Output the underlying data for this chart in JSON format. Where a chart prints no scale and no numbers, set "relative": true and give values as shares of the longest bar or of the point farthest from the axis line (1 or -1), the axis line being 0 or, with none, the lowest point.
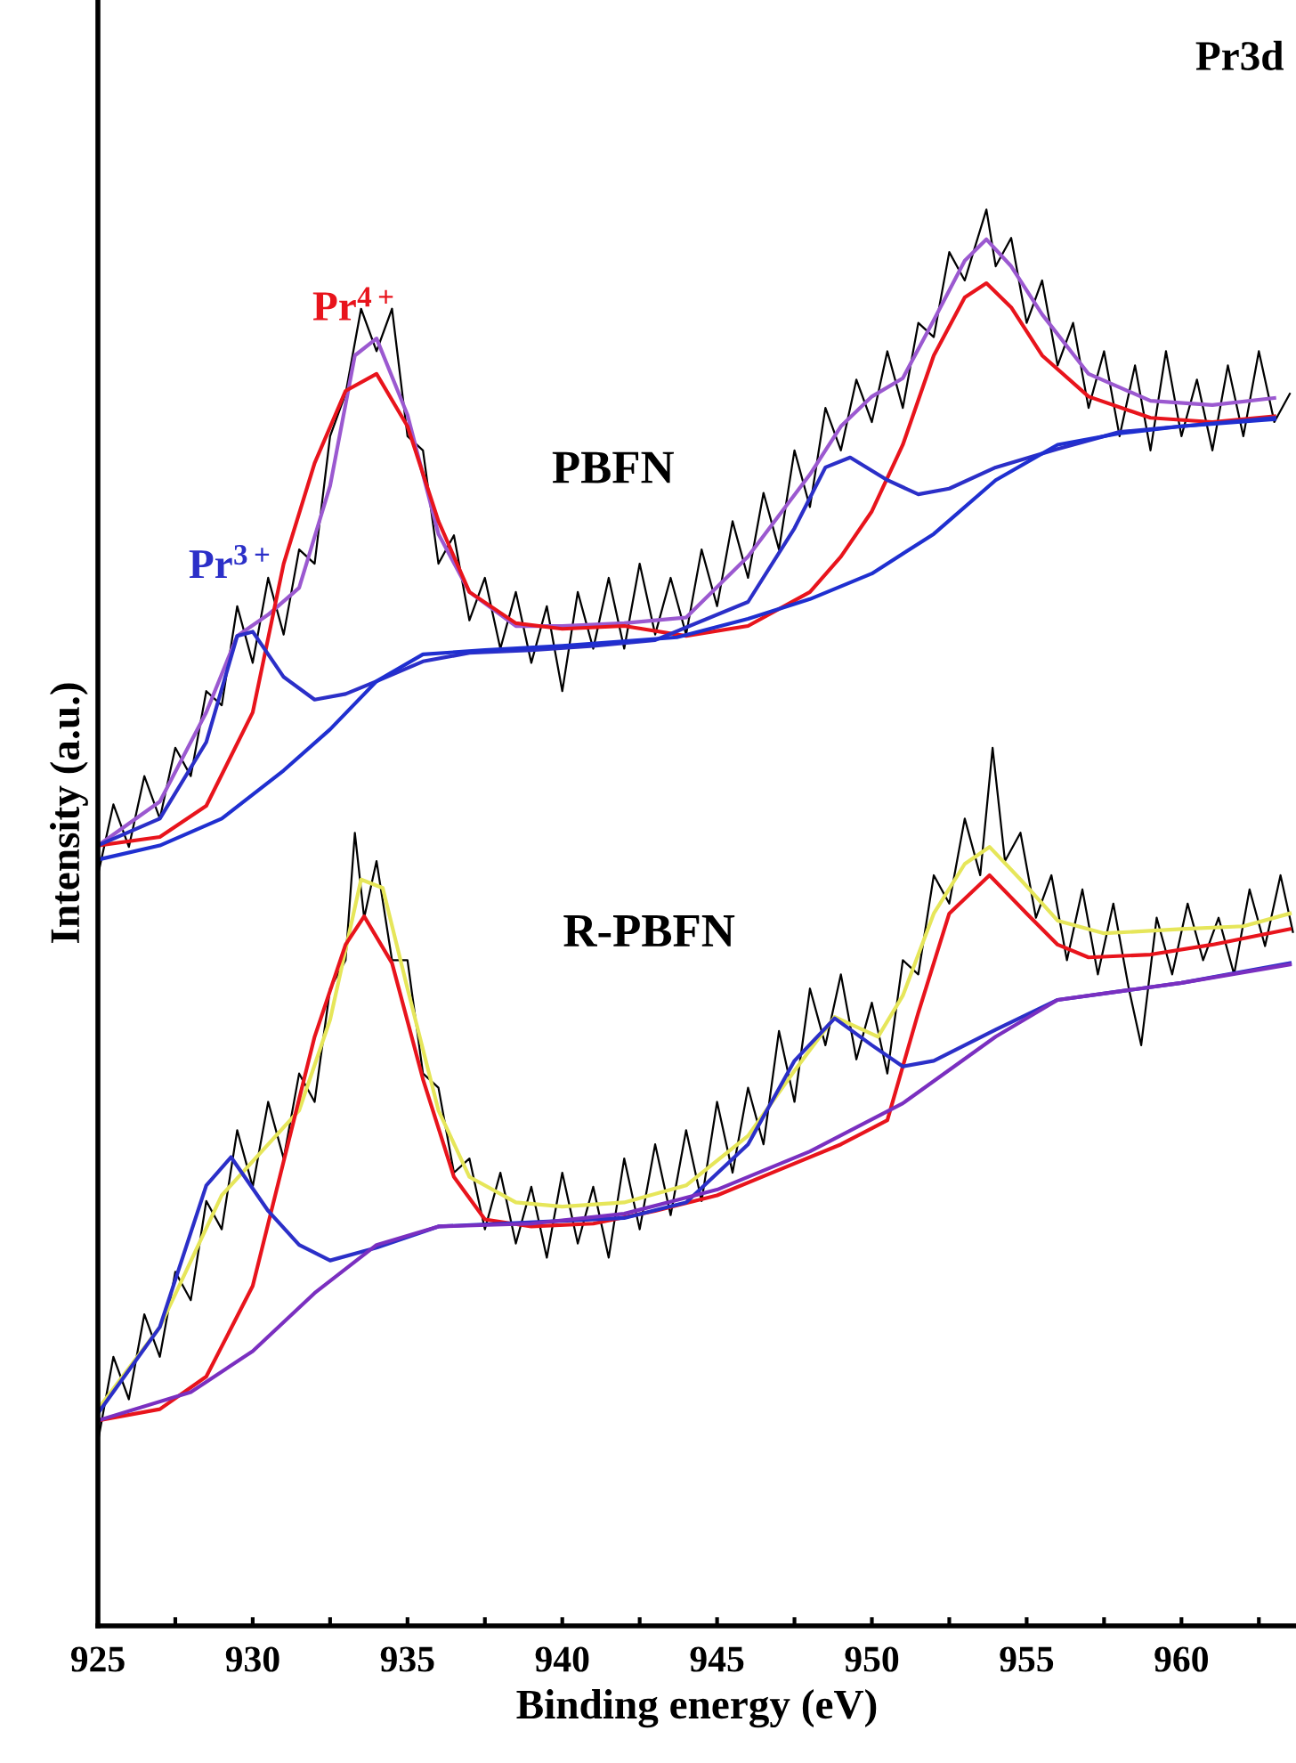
{
  "chart_data": {
    "type": "line",
    "relative": true,
    "title": "Pr3d",
    "xlabel": "Binding energy (eV)",
    "ylabel": "Intensity (a.u.)",
    "xlim": [
      925,
      963.7
    ],
    "xticks": [
      925,
      {
        "value": 927.5,
        "label": null
      },
      930,
      {
        "value": 932.5,
        "label": null
      },
      935,
      {
        "value": 937.5,
        "label": null
      },
      940,
      {
        "value": 942.5,
        "label": null
      },
      945,
      {
        "value": 947.5,
        "label": null
      },
      950,
      {
        "value": 952.5,
        "label": null
      },
      955,
      {
        "value": 957.5,
        "label": null
      },
      960,
      {
        "value": 962.5,
        "label": null
      }
    ],
    "grid": false,
    "legend": false,
    "marker": "none",
    "line_style": "solid",
    "annotations": [
      "PBFN",
      "R-PBFN"
    ],
    "series": [
      {
        "color": "#000000",
        "x": [
          925,
          925.5,
          926,
          926.5,
          927,
          927.5,
          928,
          928.5,
          929,
          929.5,
          930,
          930.5,
          931,
          931.5,
          932,
          932.5,
          933,
          933.5,
          934,
          934.5,
          935,
          935.5,
          936,
          936.5,
          937,
          937.5,
          938,
          938.5,
          939,
          939.5,
          940,
          940.5,
          941,
          941.5,
          942,
          942.5,
          943,
          943.5,
          944,
          944.5,
          945,
          945.5,
          946,
          946.5,
          947,
          947.5,
          948,
          948.5,
          949,
          949.5,
          950,
          950.5,
          951,
          951.5,
          952,
          952.5,
          953,
          953.7,
          954,
          954.5,
          955,
          955.5,
          956,
          956.5,
          957,
          957.5,
          958,
          958.5,
          959,
          959.5,
          960,
          960.5,
          961,
          961.5,
          962,
          962.5,
          963,
          963.5
        ],
        "values": [
          0.53,
          0.58,
          0.55,
          0.6,
          0.57,
          0.62,
          0.6,
          0.66,
          0.65,
          0.72,
          0.68,
          0.74,
          0.7,
          0.76,
          0.75,
          0.84,
          0.87,
          0.93,
          0.9,
          0.93,
          0.84,
          0.83,
          0.75,
          0.77,
          0.71,
          0.74,
          0.69,
          0.73,
          0.68,
          0.72,
          0.66,
          0.73,
          0.69,
          0.74,
          0.69,
          0.75,
          0.7,
          0.74,
          0.7,
          0.76,
          0.72,
          0.78,
          0.74,
          0.8,
          0.76,
          0.83,
          0.79,
          0.86,
          0.83,
          0.88,
          0.85,
          0.9,
          0.86,
          0.92,
          0.91,
          0.97,
          0.95,
          1.0,
          0.96,
          0.98,
          0.92,
          0.95,
          0.89,
          0.92,
          0.86,
          0.9,
          0.84,
          0.89,
          0.83,
          0.9,
          0.84,
          0.88,
          0.83,
          0.89,
          0.84,
          0.9,
          0.85,
          0.87
        ]
      },
      {
        "color": "#9b59d0",
        "x": [
          925,
          927,
          928.5,
          929.5,
          930.5,
          931.5,
          932.5,
          933.3,
          934,
          935,
          936,
          937,
          938.5,
          940,
          942,
          944,
          946,
          948,
          949,
          950,
          951,
          952,
          953,
          953.7,
          954.5,
          955.5,
          957,
          959,
          961,
          963
        ],
        "values": [
          0.551,
          0.582,
          0.645,
          0.699,
          0.714,
          0.733,
          0.805,
          0.897,
          0.909,
          0.855,
          0.771,
          0.73,
          0.706,
          0.706,
          0.708,
          0.712,
          0.755,
          0.813,
          0.847,
          0.868,
          0.881,
          0.922,
          0.964,
          0.979,
          0.96,
          0.926,
          0.884,
          0.865,
          0.862,
          0.867
        ]
      },
      {
        "name": "Pr$^{4+}$",
        "color": "#e8141c",
        "x": [
          925,
          927,
          928.5,
          930,
          931,
          932,
          933,
          934,
          935,
          936,
          937,
          938.5,
          940,
          942,
          944,
          946,
          948,
          949,
          950,
          951,
          952,
          953,
          953.7,
          954.5,
          955.5,
          957,
          959,
          961,
          963
        ],
        "values": [
          0.551,
          0.557,
          0.579,
          0.645,
          0.75,
          0.821,
          0.872,
          0.884,
          0.847,
          0.78,
          0.73,
          0.708,
          0.704,
          0.706,
          0.699,
          0.706,
          0.73,
          0.755,
          0.787,
          0.834,
          0.897,
          0.938,
          0.948,
          0.931,
          0.897,
          0.868,
          0.853,
          0.85,
          0.854
        ]
      },
      {
        "name": "Pr$^{3+}$",
        "color": "#2b2fc8",
        "x": [
          925,
          927,
          928.5,
          929.5,
          930,
          931,
          932,
          933,
          934,
          935.5,
          937,
          939,
          941,
          943,
          946,
          947.5,
          948.5,
          949.3,
          950.5,
          951.5,
          952.5,
          954,
          956,
          958,
          960,
          963
        ],
        "values": [
          0.551,
          0.57,
          0.624,
          0.699,
          0.702,
          0.67,
          0.654,
          0.658,
          0.667,
          0.681,
          0.687,
          0.689,
          0.692,
          0.696,
          0.723,
          0.775,
          0.818,
          0.825,
          0.809,
          0.799,
          0.803,
          0.818,
          0.831,
          0.843,
          0.847,
          0.853
        ]
      },
      {
        "color": "#1f2fd0",
        "x": [
          925,
          927,
          929,
          931,
          932.5,
          934,
          935.5,
          937.5,
          940,
          943.7,
          946,
          948,
          950,
          952,
          954,
          956,
          958,
          960,
          963
        ],
        "values": [
          0.541,
          0.551,
          0.57,
          0.604,
          0.633,
          0.667,
          0.686,
          0.689,
          0.692,
          0.698,
          0.711,
          0.725,
          0.743,
          0.771,
          0.809,
          0.834,
          0.842,
          0.847,
          0.852
        ]
      },
      {
        "color": "#000000",
        "x": [
          925,
          925.5,
          926,
          926.5,
          927,
          927.5,
          928,
          928.5,
          929,
          929.5,
          930,
          930.5,
          931,
          931.5,
          932,
          932.5,
          933,
          933.3,
          933.6,
          934,
          934.5,
          935,
          935.5,
          936,
          936.5,
          937,
          937.5,
          938,
          938.5,
          939,
          939.5,
          940,
          940.5,
          941,
          941.5,
          942,
          942.5,
          943,
          943.5,
          944,
          944.5,
          945,
          945.5,
          946,
          946.5,
          947,
          947.5,
          948,
          948.5,
          949,
          949.5,
          950,
          950.5,
          951,
          951.5,
          952,
          952.5,
          953,
          953.5,
          953.9,
          954.3,
          954.8,
          955.3,
          955.8,
          956.3,
          956.8,
          957.3,
          957.8,
          958.3,
          958.7,
          959.2,
          959.7,
          960.2,
          960.7,
          961.2,
          961.7,
          962.2,
          962.7,
          963.2,
          963.6
        ],
        "values": [
          0.13,
          0.19,
          0.16,
          0.22,
          0.19,
          0.25,
          0.23,
          0.3,
          0.28,
          0.35,
          0.31,
          0.37,
          0.33,
          0.39,
          0.37,
          0.45,
          0.47,
          0.56,
          0.5,
          0.54,
          0.47,
          0.47,
          0.39,
          0.38,
          0.32,
          0.33,
          0.28,
          0.32,
          0.27,
          0.31,
          0.26,
          0.32,
          0.27,
          0.31,
          0.26,
          0.33,
          0.28,
          0.34,
          0.29,
          0.35,
          0.3,
          0.37,
          0.32,
          0.38,
          0.34,
          0.42,
          0.37,
          0.45,
          0.41,
          0.46,
          0.4,
          0.44,
          0.39,
          0.47,
          0.46,
          0.53,
          0.51,
          0.57,
          0.53,
          0.62,
          0.54,
          0.56,
          0.5,
          0.53,
          0.47,
          0.52,
          0.46,
          0.51,
          0.45,
          0.41,
          0.5,
          0.46,
          0.51,
          0.47,
          0.5,
          0.46,
          0.52,
          0.48,
          0.53,
          0.49
        ]
      },
      {
        "color": "#e6e65a",
        "x": [
          925,
          927,
          929,
          930.5,
          931.5,
          932.5,
          933.5,
          934.2,
          935,
          936,
          937,
          938.5,
          940,
          942,
          944,
          946,
          947.5,
          948.8,
          950.2,
          951,
          952,
          953,
          953.8,
          954.8,
          956,
          957.5,
          960,
          962,
          963.5
        ],
        "values": [
          0.153,
          0.211,
          0.304,
          0.34,
          0.364,
          0.428,
          0.527,
          0.521,
          0.45,
          0.364,
          0.317,
          0.299,
          0.296,
          0.299,
          0.311,
          0.346,
          0.392,
          0.43,
          0.416,
          0.445,
          0.503,
          0.538,
          0.55,
          0.527,
          0.498,
          0.489,
          0.492,
          0.494,
          0.503
        ]
      },
      {
        "color": "#e8141c",
        "x": [
          925,
          927,
          928.5,
          930,
          931,
          932,
          933,
          933.6,
          934.5,
          935.5,
          936.5,
          937.5,
          939,
          941,
          943,
          945,
          947,
          949,
          950.5,
          951.5,
          952.5,
          953.8,
          955,
          956,
          957,
          959,
          961,
          963.5
        ],
        "values": [
          0.145,
          0.153,
          0.176,
          0.24,
          0.328,
          0.416,
          0.481,
          0.501,
          0.468,
          0.386,
          0.317,
          0.287,
          0.282,
          0.284,
          0.293,
          0.304,
          0.322,
          0.34,
          0.357,
          0.433,
          0.503,
          0.53,
          0.503,
          0.481,
          0.472,
          0.474,
          0.481,
          0.492
        ]
      },
      {
        "color": "#2b2fc8",
        "x": [
          925,
          927,
          928.5,
          929.3,
          930.5,
          931.5,
          932.5,
          934,
          936,
          938,
          940,
          942,
          944,
          946,
          947.5,
          948.8,
          950,
          951,
          952,
          954,
          956,
          958,
          960,
          963.5
        ],
        "values": [
          0.15,
          0.211,
          0.311,
          0.331,
          0.293,
          0.269,
          0.258,
          0.267,
          0.282,
          0.284,
          0.286,
          0.288,
          0.299,
          0.34,
          0.399,
          0.429,
          0.41,
          0.395,
          0.399,
          0.421,
          0.442,
          0.448,
          0.454,
          0.468
        ]
      },
      {
        "color": "#7a2fc0",
        "x": [
          925,
          928,
          930,
          932,
          934,
          936,
          939,
          942,
          945,
          948,
          951,
          954,
          956,
          958,
          960,
          963.5
        ],
        "values": [
          0.145,
          0.165,
          0.194,
          0.235,
          0.269,
          0.282,
          0.284,
          0.291,
          0.308,
          0.335,
          0.369,
          0.416,
          0.442,
          0.448,
          0.454,
          0.467
        ]
      }
    ]
  }
}
